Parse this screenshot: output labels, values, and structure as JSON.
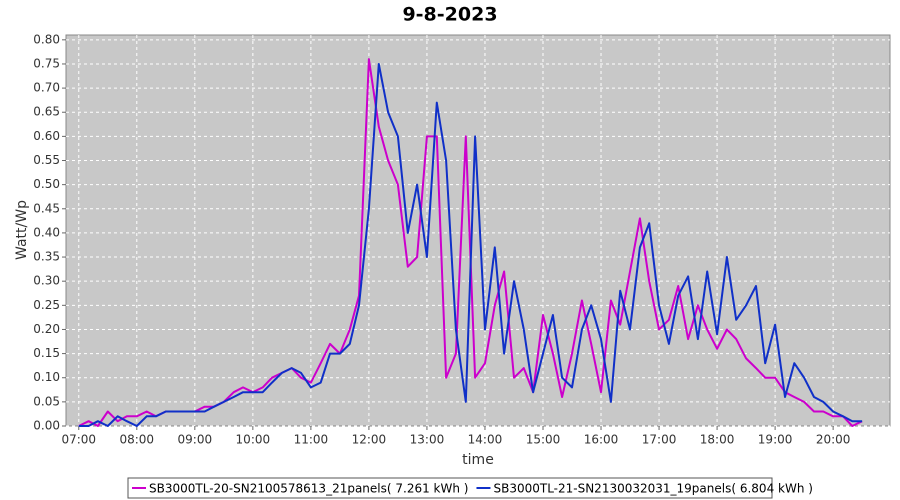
{
  "chart_data": {
    "type": "line",
    "title": "9-8-2023",
    "x_label": "time",
    "y_label": "Watt/Wp",
    "x": [
      7,
      7.17,
      7.33,
      7.5,
      7.67,
      7.83,
      8,
      8.17,
      8.33,
      8.5,
      8.67,
      8.83,
      9,
      9.17,
      9.33,
      9.5,
      9.67,
      9.83,
      10,
      10.17,
      10.33,
      10.5,
      10.67,
      10.83,
      11,
      11.17,
      11.33,
      11.5,
      11.67,
      11.83,
      12,
      12.17,
      12.33,
      12.5,
      12.67,
      12.83,
      13,
      13.17,
      13.33,
      13.5,
      13.67,
      13.83,
      14,
      14.17,
      14.33,
      14.5,
      14.67,
      14.83,
      15,
      15.17,
      15.33,
      15.5,
      15.67,
      15.83,
      16,
      16.17,
      16.33,
      16.5,
      16.67,
      16.83,
      17,
      17.17,
      17.33,
      17.5,
      17.67,
      17.83,
      18,
      18.17,
      18.33,
      18.5,
      18.67,
      18.83,
      19,
      19.17,
      19.33,
      19.5,
      19.67,
      19.83,
      20,
      20.17,
      20.33,
      20.5
    ],
    "series": [
      {
        "name": "SB3000TL-20-SN2100578613_21panels( 7.261 kWh )",
        "color": "#cc00cc",
        "values": [
          0,
          0.01,
          0,
          0.03,
          0.01,
          0.02,
          0.02,
          0.03,
          0.02,
          0.03,
          0.03,
          0.03,
          0.03,
          0.04,
          0.04,
          0.05,
          0.07,
          0.08,
          0.07,
          0.08,
          0.1,
          0.11,
          0.12,
          0.1,
          0.09,
          0.13,
          0.17,
          0.15,
          0.2,
          0.27,
          0.76,
          0.62,
          0.55,
          0.5,
          0.33,
          0.35,
          0.6,
          0.6,
          0.1,
          0.15,
          0.6,
          0.1,
          0.13,
          0.25,
          0.32,
          0.1,
          0.12,
          0.07,
          0.23,
          0.15,
          0.06,
          0.15,
          0.26,
          0.17,
          0.07,
          0.26,
          0.21,
          0.32,
          0.43,
          0.3,
          0.2,
          0.22,
          0.29,
          0.18,
          0.25,
          0.2,
          0.16,
          0.2,
          0.18,
          0.14,
          0.12,
          0.1,
          0.1,
          0.07,
          0.06,
          0.05,
          0.03,
          0.03,
          0.02,
          0.02,
          0,
          0.01
        ]
      },
      {
        "name": "SB3000TL-21-SN2130032031_19panels( 6.804 kWh )",
        "color": "#1030c8",
        "values": [
          0,
          0,
          0.01,
          0,
          0.02,
          0.01,
          0,
          0.02,
          0.02,
          0.03,
          0.03,
          0.03,
          0.03,
          0.03,
          0.04,
          0.05,
          0.06,
          0.07,
          0.07,
          0.07,
          0.09,
          0.11,
          0.12,
          0.11,
          0.08,
          0.09,
          0.15,
          0.15,
          0.17,
          0.25,
          0.45,
          0.75,
          0.65,
          0.6,
          0.4,
          0.5,
          0.35,
          0.67,
          0.55,
          0.2,
          0.05,
          0.6,
          0.2,
          0.37,
          0.15,
          0.3,
          0.2,
          0.07,
          0.15,
          0.23,
          0.1,
          0.08,
          0.2,
          0.25,
          0.18,
          0.05,
          0.28,
          0.2,
          0.37,
          0.42,
          0.25,
          0.17,
          0.27,
          0.31,
          0.18,
          0.32,
          0.19,
          0.35,
          0.22,
          0.25,
          0.29,
          0.13,
          0.21,
          0.06,
          0.13,
          0.1,
          0.06,
          0.05,
          0.03,
          0.02,
          0.01,
          0.01
        ]
      }
    ],
    "xlim": [
      6.78,
      20.98
    ],
    "xticks": [
      {
        "value": 7,
        "label": "07:00"
      },
      {
        "value": 8,
        "label": "08:00"
      },
      {
        "value": 9,
        "label": "09:00"
      },
      {
        "value": 10,
        "label": "10:00"
      },
      {
        "value": 11,
        "label": "11:00"
      },
      {
        "value": 12,
        "label": "12:00"
      },
      {
        "value": 13,
        "label": "13:00"
      },
      {
        "value": 14,
        "label": "14:00"
      },
      {
        "value": 15,
        "label": "15:00"
      },
      {
        "value": 16,
        "label": "16:00"
      },
      {
        "value": 17,
        "label": "17:00"
      },
      {
        "value": 18,
        "label": "18:00"
      },
      {
        "value": 19,
        "label": "19:00"
      },
      {
        "value": 20,
        "label": "20:00"
      }
    ],
    "ylim": [
      0,
      0.81
    ],
    "yticks": [
      {
        "value": 0,
        "label": "0.00"
      },
      0.05,
      {
        "value": 0.1,
        "label": "0.10"
      },
      0.15,
      {
        "value": 0.2,
        "label": "0.20"
      },
      0.25,
      {
        "value": 0.3,
        "label": "0.30"
      },
      0.35,
      {
        "value": 0.4,
        "label": "0.40"
      },
      0.45,
      {
        "value": 0.5,
        "label": "0.50"
      },
      0.55,
      {
        "value": 0.6,
        "label": "0.60"
      },
      0.65,
      {
        "value": 0.7,
        "label": "0.70"
      },
      0.75,
      {
        "value": 0.8,
        "label": "0.80"
      }
    ],
    "grid": true
  }
}
